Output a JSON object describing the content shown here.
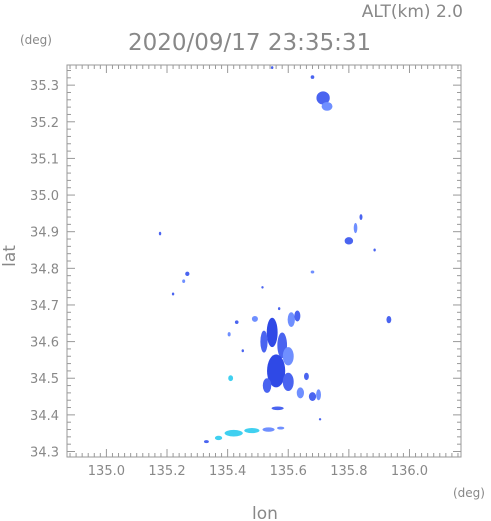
{
  "header": {
    "altitude": "ALT(km)  2.0",
    "datetime": "2020/09/17 23:35:31",
    "y_unit": "(deg)",
    "x_unit": "(deg)"
  },
  "chart_data": {
    "type": "heatmap",
    "title": "2020/09/17 23:35:31",
    "subtitle": "ALT(km)  2.0",
    "xlabel": "lon",
    "ylabel": "lat",
    "xlim": [
      134.87,
      136.17
    ],
    "ylim": [
      34.285,
      35.355
    ],
    "grid": false,
    "x_ticks": [
      "135.0",
      "135.2",
      "135.4",
      "135.6",
      "135.8",
      "136.0"
    ],
    "x_tick_values": [
      135.0,
      135.2,
      135.4,
      135.6,
      135.8,
      136.0
    ],
    "y_ticks": [
      "34.3",
      "34.4",
      "34.5",
      "34.6",
      "34.7",
      "34.8",
      "34.9",
      "35.0",
      "35.1",
      "35.2",
      "35.3"
    ],
    "y_tick_values": [
      34.3,
      34.4,
      34.5,
      34.6,
      34.7,
      34.8,
      34.9,
      35.0,
      35.1,
      35.2,
      35.3
    ],
    "colors": {
      "light": "#6f8fff",
      "mid": "#4a64f0",
      "dark": "#2f49e6",
      "cyan": "#40d0f0"
    },
    "echoes": [
      {
        "lon": 135.715,
        "lat": 35.265,
        "rlon": 0.022,
        "rlat": 0.018,
        "level": "mid"
      },
      {
        "lon": 135.728,
        "lat": 35.242,
        "rlon": 0.018,
        "rlat": 0.012,
        "level": "light"
      },
      {
        "lon": 135.68,
        "lat": 35.322,
        "rlon": 0.006,
        "rlat": 0.005,
        "level": "mid"
      },
      {
        "lon": 135.547,
        "lat": 35.348,
        "rlon": 0.004,
        "rlat": 0.004,
        "level": "mid"
      },
      {
        "lon": 135.8,
        "lat": 34.875,
        "rlon": 0.014,
        "rlat": 0.01,
        "level": "mid"
      },
      {
        "lon": 135.822,
        "lat": 34.91,
        "rlon": 0.006,
        "rlat": 0.014,
        "level": "light"
      },
      {
        "lon": 135.84,
        "lat": 34.94,
        "rlon": 0.005,
        "rlat": 0.008,
        "level": "mid"
      },
      {
        "lon": 135.177,
        "lat": 34.895,
        "rlon": 0.004,
        "rlat": 0.005,
        "level": "mid"
      },
      {
        "lon": 135.267,
        "lat": 34.785,
        "rlon": 0.007,
        "rlat": 0.006,
        "level": "mid"
      },
      {
        "lon": 135.255,
        "lat": 34.765,
        "rlon": 0.005,
        "rlat": 0.005,
        "level": "light"
      },
      {
        "lon": 135.22,
        "lat": 34.73,
        "rlon": 0.004,
        "rlat": 0.004,
        "level": "mid"
      },
      {
        "lon": 135.68,
        "lat": 34.79,
        "rlon": 0.006,
        "rlat": 0.004,
        "level": "light"
      },
      {
        "lon": 135.885,
        "lat": 34.85,
        "rlon": 0.003,
        "rlat": 0.004,
        "level": "mid"
      },
      {
        "lon": 135.932,
        "lat": 34.66,
        "rlon": 0.008,
        "rlat": 0.01,
        "level": "mid"
      },
      {
        "lon": 135.49,
        "lat": 34.662,
        "rlon": 0.01,
        "rlat": 0.008,
        "level": "light"
      },
      {
        "lon": 135.43,
        "lat": 34.653,
        "rlon": 0.006,
        "rlat": 0.005,
        "level": "mid"
      },
      {
        "lon": 135.405,
        "lat": 34.62,
        "rlon": 0.005,
        "rlat": 0.006,
        "level": "light"
      },
      {
        "lon": 135.547,
        "lat": 34.625,
        "rlon": 0.018,
        "rlat": 0.04,
        "level": "dark"
      },
      {
        "lon": 135.52,
        "lat": 34.6,
        "rlon": 0.012,
        "rlat": 0.03,
        "level": "mid"
      },
      {
        "lon": 135.58,
        "lat": 34.59,
        "rlon": 0.016,
        "rlat": 0.035,
        "level": "mid"
      },
      {
        "lon": 135.61,
        "lat": 34.66,
        "rlon": 0.012,
        "rlat": 0.02,
        "level": "light"
      },
      {
        "lon": 135.63,
        "lat": 34.67,
        "rlon": 0.01,
        "rlat": 0.015,
        "level": "mid"
      },
      {
        "lon": 135.6,
        "lat": 34.56,
        "rlon": 0.018,
        "rlat": 0.025,
        "level": "light"
      },
      {
        "lon": 135.56,
        "lat": 34.52,
        "rlon": 0.03,
        "rlat": 0.045,
        "level": "dark"
      },
      {
        "lon": 135.6,
        "lat": 34.49,
        "rlon": 0.018,
        "rlat": 0.025,
        "level": "mid"
      },
      {
        "lon": 135.53,
        "lat": 34.48,
        "rlon": 0.014,
        "rlat": 0.02,
        "level": "mid"
      },
      {
        "lon": 135.64,
        "lat": 34.46,
        "rlon": 0.012,
        "rlat": 0.015,
        "level": "light"
      },
      {
        "lon": 135.66,
        "lat": 34.505,
        "rlon": 0.008,
        "rlat": 0.01,
        "level": "mid"
      },
      {
        "lon": 135.45,
        "lat": 34.575,
        "rlon": 0.004,
        "rlat": 0.004,
        "level": "mid"
      },
      {
        "lon": 135.68,
        "lat": 34.45,
        "rlon": 0.012,
        "rlat": 0.012,
        "level": "mid"
      },
      {
        "lon": 135.7,
        "lat": 34.455,
        "rlon": 0.008,
        "rlat": 0.015,
        "level": "light"
      },
      {
        "lon": 135.41,
        "lat": 34.5,
        "rlon": 0.008,
        "rlat": 0.008,
        "level": "cyan"
      },
      {
        "lon": 135.565,
        "lat": 34.418,
        "rlon": 0.02,
        "rlat": 0.005,
        "level": "mid"
      },
      {
        "lon": 135.705,
        "lat": 34.388,
        "rlon": 0.003,
        "rlat": 0.003,
        "level": "mid"
      },
      {
        "lon": 135.42,
        "lat": 34.35,
        "rlon": 0.03,
        "rlat": 0.009,
        "level": "cyan"
      },
      {
        "lon": 135.48,
        "lat": 34.357,
        "rlon": 0.025,
        "rlat": 0.007,
        "level": "cyan"
      },
      {
        "lon": 135.535,
        "lat": 34.36,
        "rlon": 0.02,
        "rlat": 0.006,
        "level": "light"
      },
      {
        "lon": 135.575,
        "lat": 34.364,
        "rlon": 0.012,
        "rlat": 0.004,
        "level": "light"
      },
      {
        "lon": 135.37,
        "lat": 34.337,
        "rlon": 0.012,
        "rlat": 0.006,
        "level": "cyan"
      },
      {
        "lon": 135.33,
        "lat": 34.327,
        "rlon": 0.008,
        "rlat": 0.004,
        "level": "mid"
      },
      {
        "lon": 135.515,
        "lat": 34.748,
        "rlon": 0.003,
        "rlat": 0.003,
        "level": "mid"
      },
      {
        "lon": 135.57,
        "lat": 34.69,
        "rlon": 0.004,
        "rlat": 0.004,
        "level": "mid"
      }
    ]
  }
}
